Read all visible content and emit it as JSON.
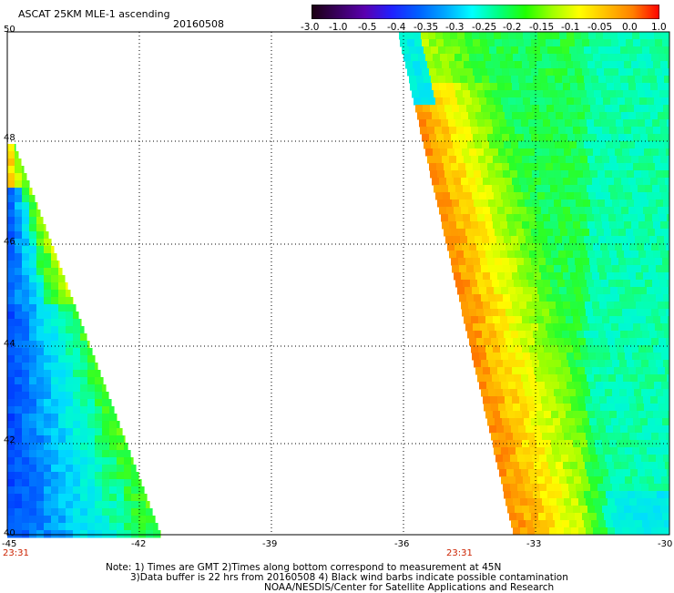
{
  "header": {
    "title": "ASCAT 25KM MLE-1 ascending",
    "date": "20160508"
  },
  "colorbar": {
    "labels": [
      "-3.0",
      "-1.0",
      "-0.5",
      "-0.4",
      "-0.35",
      "-0.3",
      "-0.25",
      "-0.2",
      "-0.15",
      "-0.1",
      "-0.05",
      "0.0",
      "1.0"
    ],
    "colors": [
      "#1a0010",
      "#3a0060",
      "#5a00b0",
      "#2020ff",
      "#0060ff",
      "#00a8ff",
      "#00ffff",
      "#00ff80",
      "#20ff00",
      "#a0ff00",
      "#ffff00",
      "#ffc000",
      "#ff8000",
      "#ff0000"
    ]
  },
  "axes": {
    "y_labels": [
      "50",
      "48",
      "46",
      "44",
      "42",
      "40"
    ],
    "x_labels": [
      "-45",
      "-42",
      "-39",
      "-36",
      "-33",
      "-30"
    ],
    "time_labels": [
      "23:31",
      "23:31"
    ]
  },
  "notes": {
    "line1": "Note: 1) Times are GMT 2)Times along bottom correspond to measurement at 45N",
    "line2": "3)Data buffer is 22 hrs from 20160508 4) Black wind barbs indicate possible contamination",
    "line3": "NOAA/NESDIS/Center for Satellite Applications and Research"
  }
}
